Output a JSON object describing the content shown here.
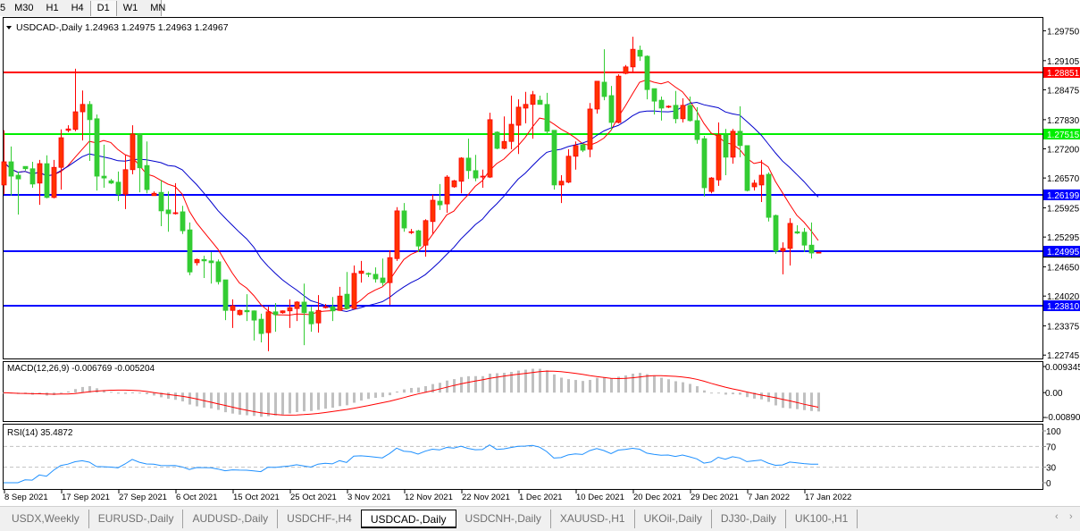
{
  "toolbar": {
    "timeframes": [
      "5",
      "M30",
      "H1",
      "H4",
      "D1",
      "W1",
      "MN"
    ],
    "active": "D1"
  },
  "header": {
    "symbol": "USDCAD-,Daily",
    "ohlc_text": "1.24963 1.24975 1.24963 1.24967",
    "icon": "triangle-down-icon"
  },
  "tabs": {
    "items": [
      "USDX,Weekly",
      "EURUSD-,Daily",
      "AUDUSD-,Daily",
      "USDCHF-,H4",
      "USDCAD-,Daily",
      "USDCNH-,Daily",
      "XAUUSD-,H1",
      "UKOil-,Daily",
      "DJ30-,Daily",
      "UK100-,H1"
    ],
    "active_index": 4,
    "scroll_left": "‹",
    "scroll_right": "›"
  },
  "colors": {
    "bull_fill": "#ff3300",
    "bull_stroke": "#ff0000",
    "bear_fill": "#33cc33",
    "bear_stroke": "#33cc33",
    "ma_fast": "#ff0000",
    "ma_slow": "#0000cc",
    "macd_hist": "#c0c0c0",
    "macd_signal": "#ff0000",
    "rsi_line": "#1e90ff",
    "level_dash": "#c0c0c0"
  },
  "chart_data": {
    "type": "candlestick",
    "symbol": "USDCAD-",
    "timeframe": "Daily",
    "ylim": [
      1.22672,
      1.30048
    ],
    "y_ticks": [
      "1.29750",
      "1.29105",
      "1.28475",
      "1.27830",
      "1.27200",
      "1.26570",
      "1.25925",
      "1.25295",
      "1.24650",
      "1.24020",
      "1.23375",
      "1.22745"
    ],
    "x_ticks": [
      {
        "bar": 0,
        "label": "8 Sep 2021"
      },
      {
        "bar": 8,
        "label": "17 Sep 2021"
      },
      {
        "bar": 16,
        "label": "27 Sep 2021"
      },
      {
        "bar": 24,
        "label": "6 Oct 2021"
      },
      {
        "bar": 32,
        "label": "15 Oct 2021"
      },
      {
        "bar": 40,
        "label": "25 Oct 2021"
      },
      {
        "bar": 48,
        "label": "3 Nov 2021"
      },
      {
        "bar": 56,
        "label": "12 Nov 2021"
      },
      {
        "bar": 64,
        "label": "22 Nov 2021"
      },
      {
        "bar": 72,
        "label": "1 Dec 2021"
      },
      {
        "bar": 80,
        "label": "10 Dec 2021"
      },
      {
        "bar": 88,
        "label": "20 Dec 2021"
      },
      {
        "bar": 96,
        "label": "29 Dec 2021"
      },
      {
        "bar": 104,
        "label": "7 Jan 2022"
      },
      {
        "bar": 112,
        "label": "17 Jan 2022"
      }
    ],
    "horizontal_lines": [
      {
        "price": "1.28851",
        "color": "#ff0000"
      },
      {
        "price": "1.27515",
        "color": "#00ee00"
      },
      {
        "price": "1.26199",
        "color": "#0000ff"
      },
      {
        "price": "1.24995",
        "color": "#0000ff"
      },
      {
        "price": "1.23810",
        "color": "#0000ff"
      }
    ],
    "current_price": 1.24967,
    "ohlc_columns": [
      "open",
      "high",
      "low",
      "close"
    ],
    "ohlc": [
      [
        1.2642,
        1.276,
        1.2622,
        1.2692
      ],
      [
        1.2692,
        1.2725,
        1.2619,
        1.2661
      ],
      [
        1.2663,
        1.2671,
        1.2578,
        1.2655
      ],
      [
        1.2682,
        1.2682,
        1.2673,
        1.2677
      ],
      [
        1.2677,
        1.2692,
        1.2636,
        1.2644
      ],
      [
        1.2646,
        1.2696,
        1.2599,
        1.2688
      ],
      [
        1.2688,
        1.2706,
        1.2613,
        1.2615
      ],
      [
        1.2615,
        1.2696,
        1.2613,
        1.268
      ],
      [
        1.268,
        1.2762,
        1.2632,
        1.2744
      ],
      [
        1.276,
        1.2771,
        1.2756,
        1.2763
      ],
      [
        1.2762,
        1.2893,
        1.2758,
        1.28
      ],
      [
        1.28,
        1.2846,
        1.2738,
        1.2816
      ],
      [
        1.2816,
        1.2823,
        1.2694,
        1.2783
      ],
      [
        1.2785,
        1.2794,
        1.263,
        1.2661
      ],
      [
        1.2661,
        1.2729,
        1.2636,
        1.2657
      ],
      [
        1.2651,
        1.2655,
        1.2644,
        1.2646
      ],
      [
        1.2648,
        1.2671,
        1.2607,
        1.2622
      ],
      [
        1.2622,
        1.2706,
        1.259,
        1.2675
      ],
      [
        1.2675,
        1.2771,
        1.2665,
        1.2752
      ],
      [
        1.2752,
        1.2754,
        1.2626,
        1.2679
      ],
      [
        1.2684,
        1.2736,
        1.2624,
        1.2632
      ],
      [
        1.2619,
        1.2628,
        1.2619,
        1.2624
      ],
      [
        1.2626,
        1.2653,
        1.2553,
        1.2586
      ],
      [
        1.2588,
        1.2628,
        1.2541,
        1.258
      ],
      [
        1.258,
        1.2646,
        1.2578,
        1.2582
      ],
      [
        1.2584,
        1.2597,
        1.2536,
        1.2543
      ],
      [
        1.2545,
        1.2561,
        1.2447,
        1.2454
      ],
      [
        1.2474,
        1.2483,
        1.2468,
        1.2481
      ],
      [
        1.2481,
        1.2489,
        1.2441,
        1.2478
      ],
      [
        1.2478,
        1.2497,
        1.2429,
        1.2474
      ],
      [
        1.2476,
        1.2481,
        1.2427,
        1.2433
      ],
      [
        1.2437,
        1.2437,
        1.235,
        1.2371
      ],
      [
        1.2371,
        1.2395,
        1.2333,
        1.2381
      ],
      [
        1.2362,
        1.2373,
        1.236,
        1.2371
      ],
      [
        1.2371,
        1.2406,
        1.2348,
        1.2368
      ],
      [
        1.237,
        1.2371,
        1.2306,
        1.235
      ],
      [
        1.2352,
        1.2364,
        1.2302,
        1.2321
      ],
      [
        1.2323,
        1.2379,
        1.2283,
        1.2368
      ],
      [
        1.2368,
        1.2387,
        1.2325,
        1.2362
      ],
      [
        1.2366,
        1.2371,
        1.2364,
        1.237
      ],
      [
        1.237,
        1.2395,
        1.2333,
        1.2377
      ],
      [
        1.2375,
        1.2391,
        1.2348,
        1.2389
      ],
      [
        1.2389,
        1.2429,
        1.2296,
        1.2366
      ],
      [
        1.2368,
        1.2379,
        1.2325,
        1.2342
      ],
      [
        1.2344,
        1.2404,
        1.2323,
        1.2371
      ],
      [
        1.2377,
        1.2385,
        1.2375,
        1.2379
      ],
      [
        1.2379,
        1.24,
        1.2348,
        1.237
      ],
      [
        1.2371,
        1.2422,
        1.237,
        1.2402
      ],
      [
        1.2406,
        1.2454,
        1.2373,
        1.2375
      ],
      [
        1.2375,
        1.2468,
        1.2373,
        1.2451
      ],
      [
        1.2451,
        1.2478,
        1.2431,
        1.2456
      ],
      [
        1.2451,
        1.2453,
        1.2443,
        1.2449
      ],
      [
        1.2449,
        1.2464,
        1.2431,
        1.2439
      ],
      [
        1.2441,
        1.2483,
        1.2424,
        1.2431
      ],
      [
        1.2431,
        1.2501,
        1.2383,
        1.2485
      ],
      [
        1.2483,
        1.2594,
        1.2478,
        1.2586
      ],
      [
        1.2586,
        1.2603,
        1.2541,
        1.2549
      ],
      [
        1.254,
        1.2547,
        1.2536,
        1.2541
      ],
      [
        1.2543,
        1.2545,
        1.2497,
        1.251
      ],
      [
        1.2512,
        1.2568,
        1.2487,
        1.2565
      ],
      [
        1.2563,
        1.2621,
        1.2536,
        1.2609
      ],
      [
        1.2607,
        1.2644,
        1.2588,
        1.2599
      ],
      [
        1.2601,
        1.2663,
        1.2582,
        1.2659
      ],
      [
        1.2638,
        1.2653,
        1.2636,
        1.2651
      ],
      [
        1.265,
        1.2702,
        1.2624,
        1.27
      ],
      [
        1.27,
        1.2742,
        1.2655,
        1.2673
      ],
      [
        1.2673,
        1.2707,
        1.265,
        1.2657
      ],
      [
        1.2659,
        1.2675,
        1.2636,
        1.2661
      ],
      [
        1.2659,
        1.2798,
        1.2657,
        1.2783
      ],
      [
        1.2756,
        1.2758,
        1.2719,
        1.2721
      ],
      [
        1.2721,
        1.279,
        1.2719,
        1.2736
      ],
      [
        1.2736,
        1.2835,
        1.2719,
        1.2773
      ],
      [
        1.2771,
        1.2827,
        1.2709,
        1.281
      ],
      [
        1.2808,
        1.2843,
        1.2775,
        1.2816
      ],
      [
        1.2816,
        1.2845,
        1.2742,
        1.2837
      ],
      [
        1.2825,
        1.2835,
        1.2816,
        1.2816
      ],
      [
        1.2816,
        1.2841,
        1.2752,
        1.2758
      ],
      [
        1.276,
        1.276,
        1.2632,
        1.2642
      ],
      [
        1.2642,
        1.2663,
        1.2603,
        1.265
      ],
      [
        1.2648,
        1.2719,
        1.2646,
        1.2704
      ],
      [
        1.2704,
        1.2736,
        1.2675,
        1.2727
      ],
      [
        1.2729,
        1.2731,
        1.2713,
        1.2717
      ],
      [
        1.2719,
        1.2819,
        1.2702,
        1.2806
      ],
      [
        1.2806,
        1.2866,
        1.2796,
        1.2866
      ],
      [
        1.2864,
        1.2935,
        1.2825,
        1.2833
      ],
      [
        1.2835,
        1.2856,
        1.276,
        1.2777
      ],
      [
        1.2777,
        1.2881,
        1.2775,
        1.2877
      ],
      [
        1.2883,
        1.2901,
        1.2881,
        1.2897
      ],
      [
        1.2897,
        1.2962,
        1.2885,
        1.2935
      ],
      [
        1.2933,
        1.2943,
        1.291,
        1.292
      ],
      [
        1.292,
        1.2922,
        1.2827,
        1.2848
      ],
      [
        1.285,
        1.285,
        1.2794,
        1.2823
      ],
      [
        1.2825,
        1.2833,
        1.2781,
        1.2808
      ],
      [
        1.281,
        1.2814,
        1.2808,
        1.2812
      ],
      [
        1.2814,
        1.2845,
        1.2775,
        1.2785
      ],
      [
        1.2785,
        1.2829,
        1.2777,
        1.2814
      ],
      [
        1.2814,
        1.2833,
        1.2779,
        1.2781
      ],
      [
        1.2781,
        1.281,
        1.2731,
        1.274
      ],
      [
        1.2742,
        1.2748,
        1.2617,
        1.2636
      ],
      [
        1.2628,
        1.2659,
        1.2624,
        1.2657
      ],
      [
        1.2653,
        1.2777,
        1.264,
        1.275
      ],
      [
        1.275,
        1.2763,
        1.2663,
        1.2702
      ],
      [
        1.2702,
        1.2763,
        1.2688,
        1.2758
      ],
      [
        1.2758,
        1.2812,
        1.2702,
        1.2727
      ],
      [
        1.2727,
        1.2727,
        1.2628,
        1.263
      ],
      [
        1.2638,
        1.2653,
        1.263,
        1.2646
      ],
      [
        1.2642,
        1.2696,
        1.2605,
        1.2663
      ],
      [
        1.2665,
        1.2669,
        1.2563,
        1.2572
      ],
      [
        1.2576,
        1.2578,
        1.2493,
        1.2499
      ],
      [
        1.2499,
        1.2518,
        1.2449,
        1.2505
      ],
      [
        1.2505,
        1.257,
        1.2468,
        1.2559
      ],
      [
        1.2541,
        1.2555,
        1.2536,
        1.2538
      ],
      [
        1.254,
        1.2549,
        1.2497,
        1.2512
      ],
      [
        1.2512,
        1.2561,
        1.2483,
        1.2495
      ],
      [
        1.24963,
        1.24975,
        1.24963,
        1.24967
      ]
    ],
    "indicators": {
      "moving_averages": [
        {
          "line": "fast",
          "color": "#ff0000"
        },
        {
          "line": "slow",
          "color": "#0000cc"
        }
      ],
      "macd": {
        "label": "MACD(12,26,9) -0.006769 -0.005204",
        "ylim": [
          -0.008902,
          0.009345
        ],
        "y_ticks": [
          "0.009345",
          "0.00",
          "-0.008902"
        ]
      },
      "rsi": {
        "label": "RSI(14) 35.4872",
        "ylim": [
          0,
          100
        ],
        "levels": [
          70,
          30
        ],
        "y_ticks": [
          "100",
          "70",
          "30",
          "0"
        ]
      }
    }
  }
}
